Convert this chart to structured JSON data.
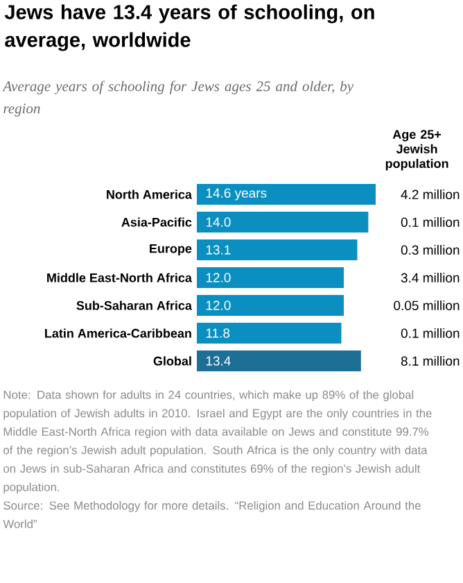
{
  "chart_data": {
    "type": "bar",
    "orientation": "horizontal",
    "title": "Jews have 13.4 years of schooling, on average, worldwide",
    "subtitle": "Average years of schooling for Jews ages 25 and older, by region",
    "categories": [
      "North America",
      "Asia-Pacific",
      "Europe",
      "Middle East-North Africa",
      "Sub-Saharan Africa",
      "Latin America-Caribbean",
      "Global"
    ],
    "values": [
      14.6,
      14.0,
      13.1,
      12.0,
      12.0,
      11.8,
      13.4
    ],
    "colors": [
      "#0b8fc0",
      "#0b8fc0",
      "#0b8fc0",
      "#0b8fc0",
      "#0b8fc0",
      "#0b8fc0",
      "#1d6f95"
    ],
    "value_labels": [
      "14.6 years",
      "14.0",
      "13.1",
      "12.0",
      "12.0",
      "11.8",
      "13.4"
    ],
    "annotations": [
      "Age 25+ Jewish population",
      "4.2 million",
      "0.1 million",
      "0.3 million",
      "3.4 million",
      "0.05 million",
      "0.1 million",
      "8.1 million",
      "Note: Data shown for adults in 24 countries, which make up 89% of the global population of Jewish adults in 2010. Israel and Egypt are the only countries in the Middle East-North Africa region with data available on Jews and constitute 99.7% of the region’s Jewish adult population. South Africa is the only country with data on Jews in sub-Saharan Africa and constitutes 69% of the region’s Jewish adult population.",
      "Source: See Methodology for more details. “Religion and Education Around the World”"
    ]
  }
}
